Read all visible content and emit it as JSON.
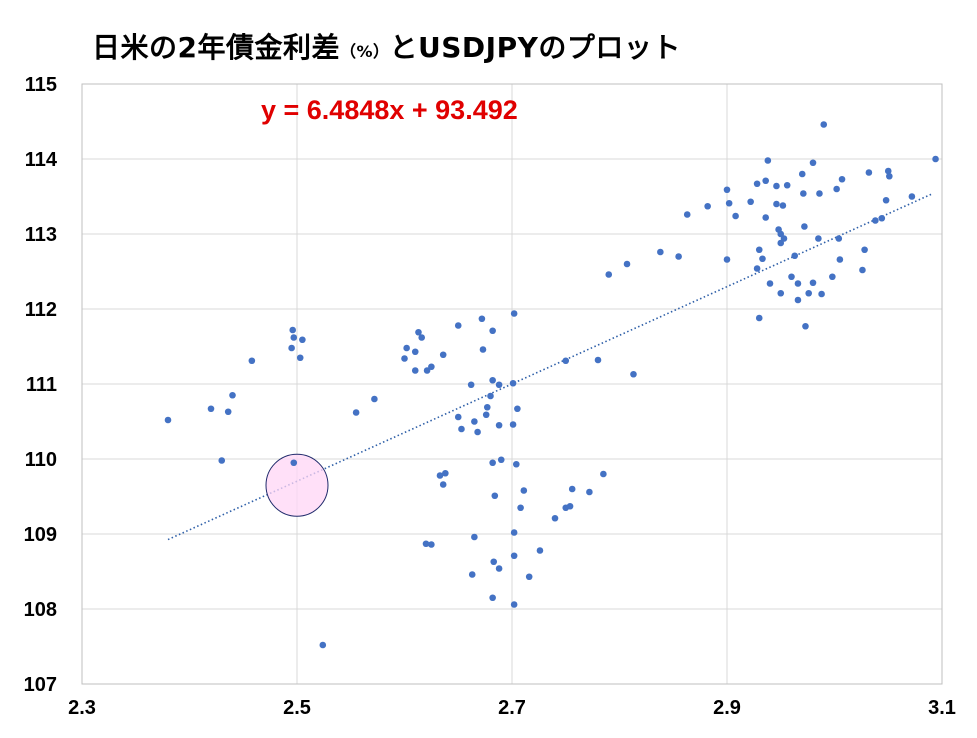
{
  "title": {
    "main": "日米の2年債金利差",
    "unit": "（%）",
    "suffix": "とUSDJPYのプロット"
  },
  "chart_data": {
    "type": "scatter",
    "xlim": [
      2.3,
      3.1
    ],
    "ylim": [
      107,
      115
    ],
    "xticks": [
      "2.3",
      "2.5",
      "2.7",
      "2.9",
      "3.1"
    ],
    "yticks": [
      "107",
      "108",
      "109",
      "110",
      "111",
      "112",
      "113",
      "114",
      "115"
    ],
    "grid": true,
    "equation": "y = 6.4848x + 93.492",
    "trendline": {
      "slope": 6.4848,
      "intercept": 93.492,
      "x_range": [
        2.38,
        3.09
      ],
      "style": "dotted"
    },
    "highlight": {
      "x": 2.5,
      "y": 109.65,
      "note": "pink circle marker"
    },
    "marker_color": "#4472C4",
    "trend_color": "#2E5FA8",
    "equation_color": "#E00000",
    "points": [
      [
        2.38,
        110.52
      ],
      [
        2.42,
        110.67
      ],
      [
        2.43,
        109.98
      ],
      [
        2.436,
        110.63
      ],
      [
        2.44,
        110.85
      ],
      [
        2.458,
        111.31
      ],
      [
        2.496,
        111.72
      ],
      [
        2.497,
        111.62
      ],
      [
        2.495,
        111.48
      ],
      [
        2.497,
        109.95
      ],
      [
        2.503,
        111.35
      ],
      [
        2.505,
        111.59
      ],
      [
        2.524,
        107.52
      ],
      [
        2.555,
        110.62
      ],
      [
        2.572,
        110.8
      ],
      [
        2.6,
        111.34
      ],
      [
        2.602,
        111.48
      ],
      [
        2.61,
        111.43
      ],
      [
        2.61,
        111.18
      ],
      [
        2.613,
        111.69
      ],
      [
        2.616,
        111.62
      ],
      [
        2.62,
        108.87
      ],
      [
        2.621,
        111.18
      ],
      [
        2.625,
        108.86
      ],
      [
        2.625,
        111.23
      ],
      [
        2.633,
        109.78
      ],
      [
        2.636,
        111.39
      ],
      [
        2.636,
        109.66
      ],
      [
        2.638,
        109.81
      ],
      [
        2.65,
        110.56
      ],
      [
        2.65,
        111.78
      ],
      [
        2.653,
        110.4
      ],
      [
        2.662,
        110.99
      ],
      [
        2.663,
        108.46
      ],
      [
        2.665,
        108.96
      ],
      [
        2.665,
        110.5
      ],
      [
        2.668,
        110.36
      ],
      [
        2.672,
        111.87
      ],
      [
        2.673,
        111.46
      ],
      [
        2.676,
        110.59
      ],
      [
        2.677,
        110.69
      ],
      [
        2.68,
        110.84
      ],
      [
        2.682,
        111.05
      ],
      [
        2.682,
        109.95
      ],
      [
        2.682,
        111.71
      ],
      [
        2.683,
        108.63
      ],
      [
        2.682,
        108.15
      ],
      [
        2.684,
        109.51
      ],
      [
        2.688,
        108.54
      ],
      [
        2.688,
        110.45
      ],
      [
        2.688,
        110.99
      ],
      [
        2.69,
        109.99
      ],
      [
        2.701,
        111.01
      ],
      [
        2.702,
        111.94
      ],
      [
        2.701,
        110.46
      ],
      [
        2.702,
        109.02
      ],
      [
        2.702,
        108.71
      ],
      [
        2.702,
        108.06
      ],
      [
        2.704,
        109.93
      ],
      [
        2.705,
        110.67
      ],
      [
        2.708,
        109.35
      ],
      [
        2.711,
        109.58
      ],
      [
        2.716,
        108.43
      ],
      [
        2.726,
        108.78
      ],
      [
        2.74,
        109.21
      ],
      [
        2.75,
        109.35
      ],
      [
        2.754,
        109.37
      ],
      [
        2.756,
        109.6
      ],
      [
        2.75,
        111.31
      ],
      [
        2.772,
        109.56
      ],
      [
        2.78,
        111.32
      ],
      [
        2.785,
        109.8
      ],
      [
        2.79,
        112.46
      ],
      [
        2.807,
        112.6
      ],
      [
        2.813,
        111.13
      ],
      [
        2.838,
        112.76
      ],
      [
        2.855,
        112.7
      ],
      [
        2.863,
        113.26
      ],
      [
        2.882,
        113.37
      ],
      [
        2.9,
        113.59
      ],
      [
        2.9,
        112.66
      ],
      [
        2.902,
        113.41
      ],
      [
        2.908,
        113.24
      ],
      [
        2.922,
        113.43
      ],
      [
        2.928,
        113.67
      ],
      [
        2.928,
        112.54
      ],
      [
        2.93,
        112.79
      ],
      [
        2.93,
        111.88
      ],
      [
        2.933,
        112.67
      ],
      [
        2.936,
        113.71
      ],
      [
        2.938,
        113.98
      ],
      [
        2.936,
        113.22
      ],
      [
        2.94,
        112.34
      ],
      [
        2.946,
        113.64
      ],
      [
        2.946,
        113.4
      ],
      [
        2.948,
        113.06
      ],
      [
        2.95,
        112.21
      ],
      [
        2.95,
        113.0
      ],
      [
        2.952,
        113.38
      ],
      [
        2.95,
        112.88
      ],
      [
        2.953,
        112.94
      ],
      [
        2.956,
        113.65
      ],
      [
        2.96,
        112.43
      ],
      [
        2.963,
        112.71
      ],
      [
        2.966,
        112.12
      ],
      [
        2.966,
        112.34
      ],
      [
        2.97,
        113.8
      ],
      [
        2.971,
        113.54
      ],
      [
        2.972,
        113.1
      ],
      [
        2.973,
        111.77
      ],
      [
        2.976,
        112.21
      ],
      [
        2.98,
        113.95
      ],
      [
        2.98,
        112.35
      ],
      [
        2.985,
        112.94
      ],
      [
        2.986,
        113.54
      ],
      [
        2.988,
        112.2
      ],
      [
        2.99,
        114.46
      ],
      [
        2.998,
        112.43
      ],
      [
        3.002,
        113.6
      ],
      [
        3.004,
        112.94
      ],
      [
        3.005,
        112.66
      ],
      [
        3.007,
        113.73
      ],
      [
        3.026,
        112.52
      ],
      [
        3.028,
        112.79
      ],
      [
        3.032,
        113.82
      ],
      [
        3.038,
        113.18
      ],
      [
        3.044,
        113.21
      ],
      [
        3.048,
        113.45
      ],
      [
        3.05,
        113.84
      ],
      [
        3.051,
        113.77
      ],
      [
        3.072,
        113.5
      ],
      [
        3.094,
        114.0
      ]
    ]
  }
}
